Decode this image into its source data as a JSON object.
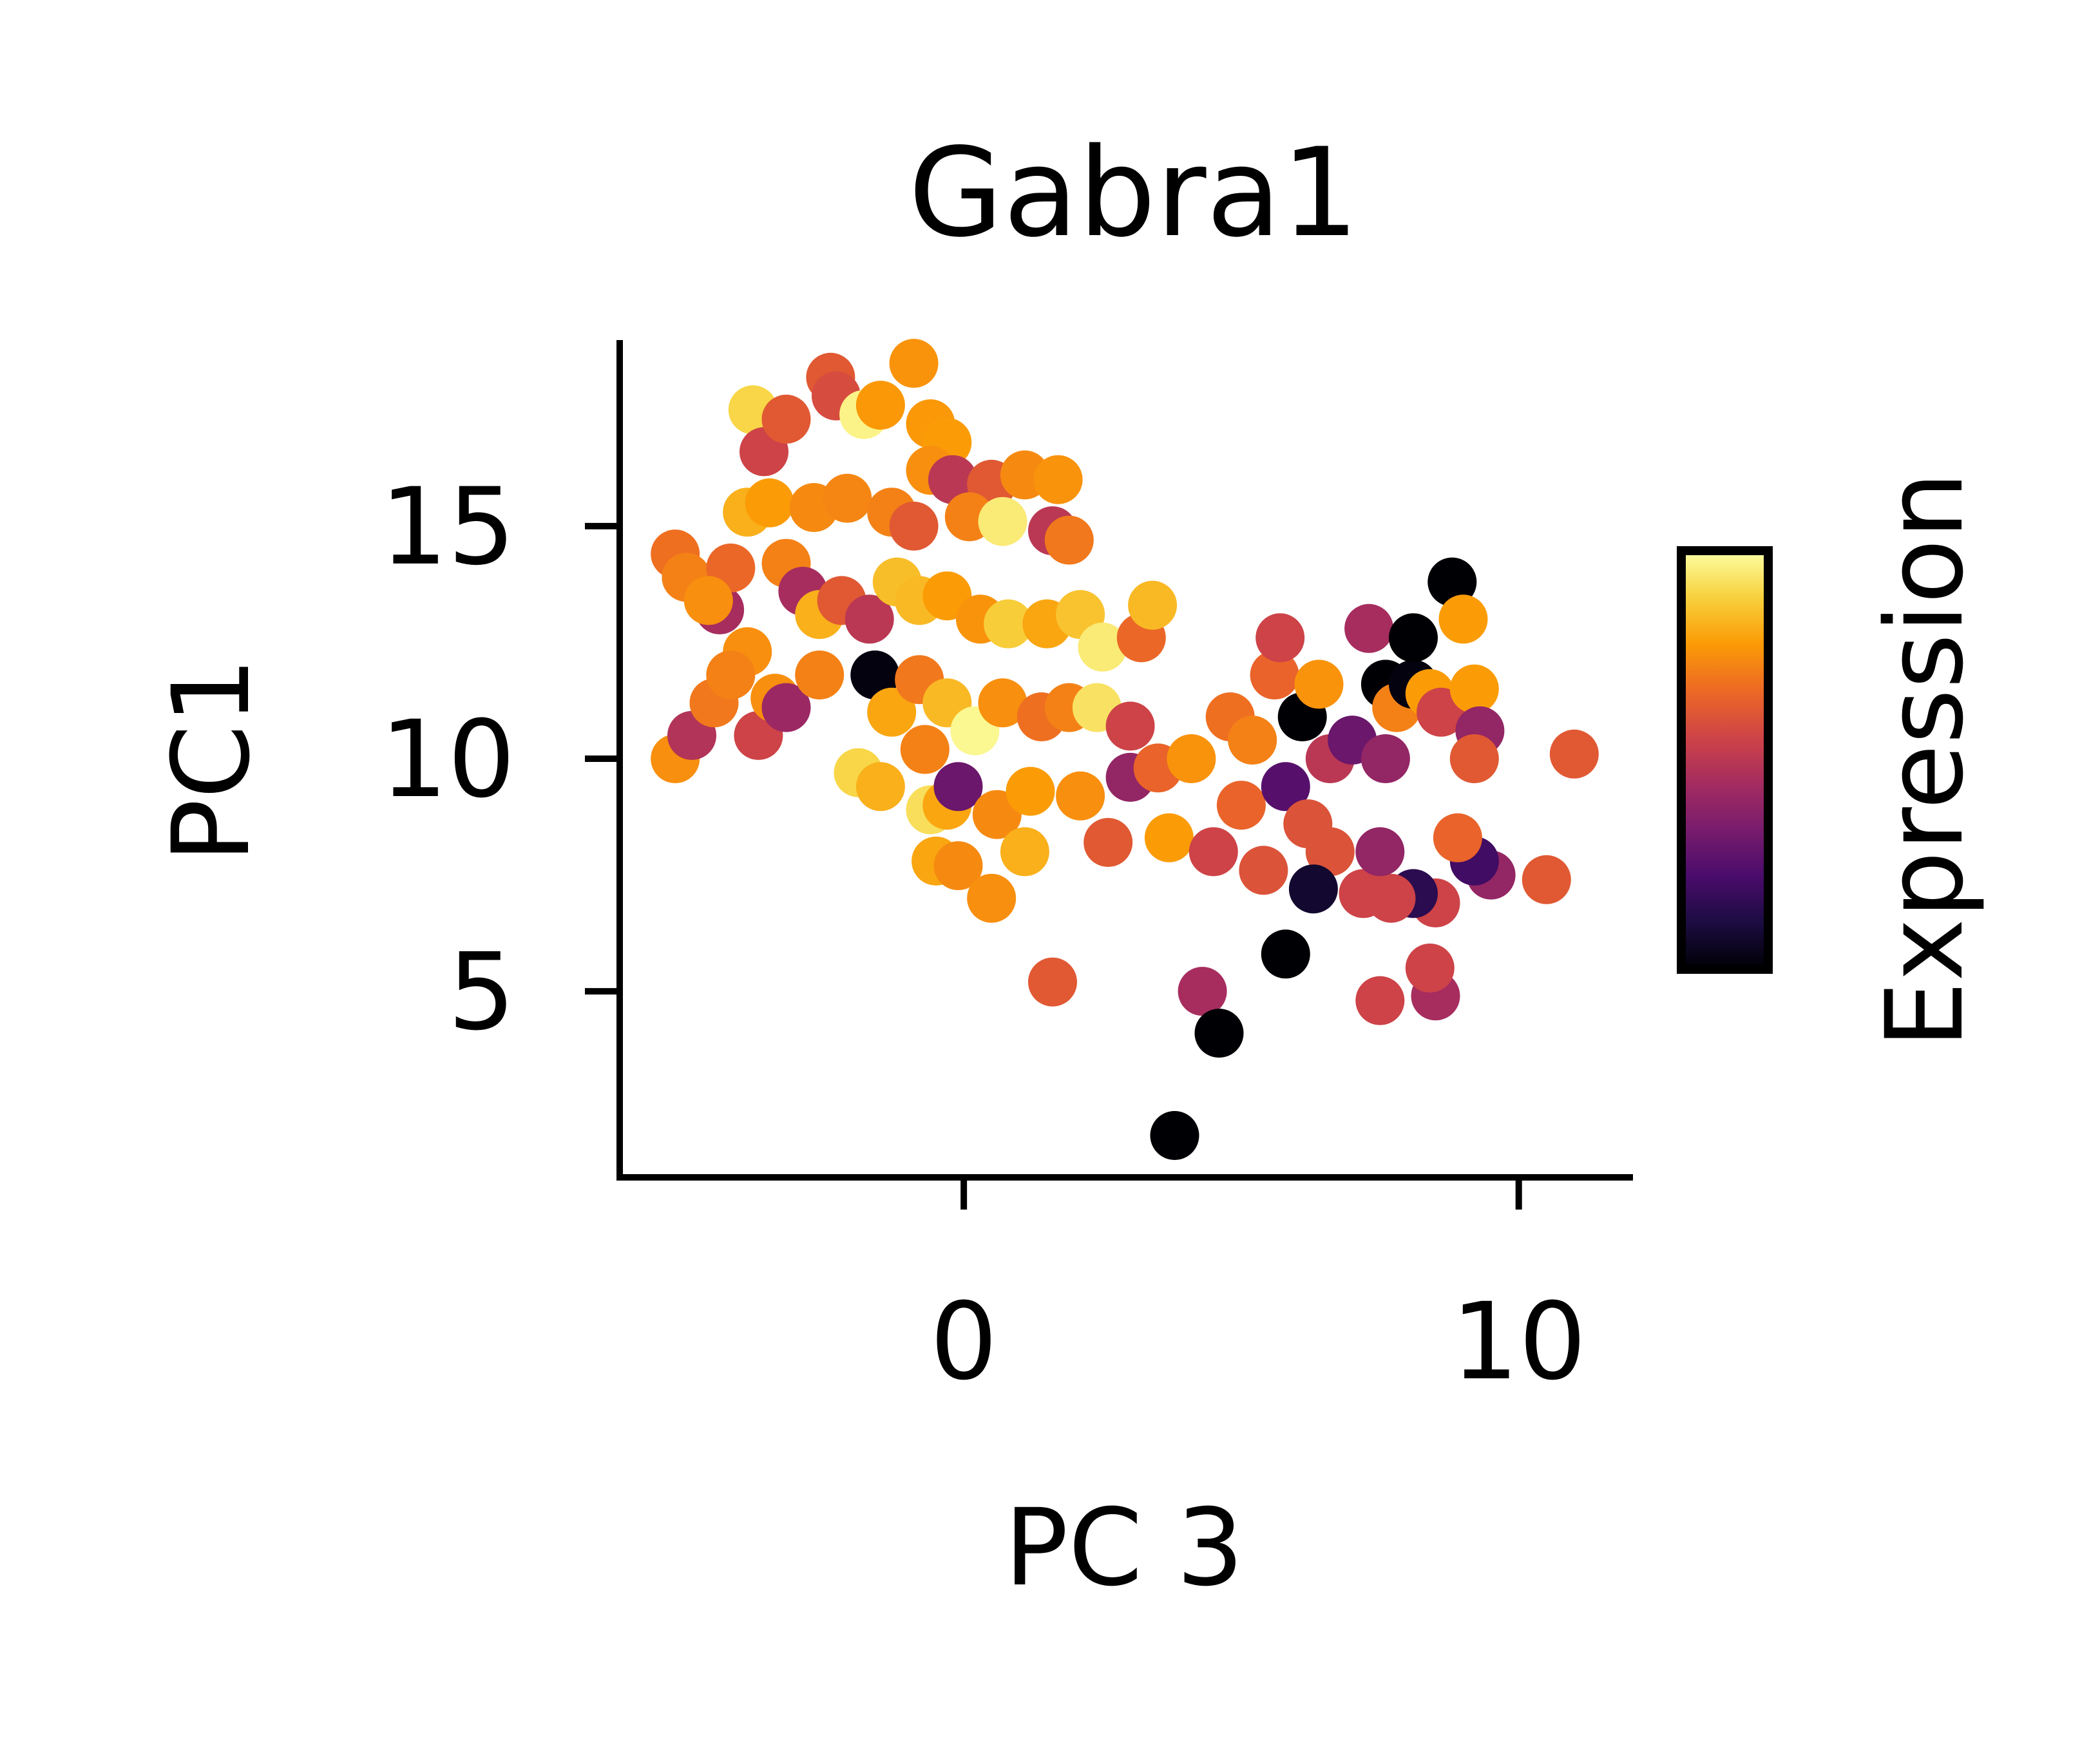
{
  "chart_data": {
    "type": "scatter",
    "title": "Gabra1",
    "xlabel": "PC 3",
    "ylabel": "PC1",
    "xlim": [
      -6.2,
      12.0
    ],
    "ylim": [
      1.0,
      19.0
    ],
    "xticks": [
      0,
      10
    ],
    "yticks": [
      5,
      10,
      15
    ],
    "grid": false,
    "legend": "none",
    "colorbar": {
      "label": "Expression",
      "colormap": "inferno",
      "range": [
        0,
        1
      ],
      "position": "right"
    },
    "colormap_stops": [
      "#000004",
      "#1b0c41",
      "#4a0c6b",
      "#781c6d",
      "#a52c60",
      "#cf4446",
      "#ed6925",
      "#fb9b06",
      "#f7d13d",
      "#fcffa4"
    ],
    "series": [
      {
        "name": "",
        "points": [
          {
            "x": -5.2,
            "y": 14.4,
            "v": 0.68
          },
          {
            "x": -5.0,
            "y": 13.9,
            "v": 0.72
          },
          {
            "x": -4.4,
            "y": 13.2,
            "v": 0.45
          },
          {
            "x": -4.2,
            "y": 14.1,
            "v": 0.66
          },
          {
            "x": -3.8,
            "y": 17.5,
            "v": 0.9
          },
          {
            "x": -3.6,
            "y": 16.6,
            "v": 0.55
          },
          {
            "x": -3.9,
            "y": 15.3,
            "v": 0.82
          },
          {
            "x": -3.5,
            "y": 15.5,
            "v": 0.78
          },
          {
            "x": -3.2,
            "y": 17.3,
            "v": 0.62
          },
          {
            "x": -2.4,
            "y": 18.2,
            "v": 0.62
          },
          {
            "x": -2.3,
            "y": 17.8,
            "v": 0.58
          },
          {
            "x": -1.8,
            "y": 17.4,
            "v": 0.97
          },
          {
            "x": -1.5,
            "y": 17.6,
            "v": 0.77
          },
          {
            "x": -0.9,
            "y": 18.5,
            "v": 0.76
          },
          {
            "x": -0.6,
            "y": 17.2,
            "v": 0.77
          },
          {
            "x": -0.3,
            "y": 16.8,
            "v": 0.78
          },
          {
            "x": -0.6,
            "y": 16.2,
            "v": 0.75
          },
          {
            "x": -0.2,
            "y": 16.0,
            "v": 0.5
          },
          {
            "x": 0.5,
            "y": 15.9,
            "v": 0.62
          },
          {
            "x": 1.1,
            "y": 16.1,
            "v": 0.74
          },
          {
            "x": 1.7,
            "y": 16.0,
            "v": 0.76
          },
          {
            "x": -2.7,
            "y": 15.4,
            "v": 0.74
          },
          {
            "x": -2.1,
            "y": 15.6,
            "v": 0.73
          },
          {
            "x": -1.3,
            "y": 15.3,
            "v": 0.72
          },
          {
            "x": -0.9,
            "y": 15.0,
            "v": 0.62
          },
          {
            "x": 0.1,
            "y": 15.2,
            "v": 0.72
          },
          {
            "x": 0.7,
            "y": 15.1,
            "v": 0.95
          },
          {
            "x": 1.6,
            "y": 14.9,
            "v": 0.5
          },
          {
            "x": 1.9,
            "y": 14.7,
            "v": 0.7
          },
          {
            "x": -4.6,
            "y": 13.4,
            "v": 0.75
          },
          {
            "x": -3.9,
            "y": 12.3,
            "v": 0.75
          },
          {
            "x": -3.2,
            "y": 14.2,
            "v": 0.72
          },
          {
            "x": -2.9,
            "y": 13.6,
            "v": 0.45
          },
          {
            "x": -2.6,
            "y": 13.1,
            "v": 0.82
          },
          {
            "x": -2.2,
            "y": 13.4,
            "v": 0.62
          },
          {
            "x": -1.7,
            "y": 13.0,
            "v": 0.5
          },
          {
            "x": -1.2,
            "y": 13.8,
            "v": 0.85
          },
          {
            "x": -0.8,
            "y": 13.4,
            "v": 0.84
          },
          {
            "x": -0.3,
            "y": 13.5,
            "v": 0.78
          },
          {
            "x": 0.3,
            "y": 13.0,
            "v": 0.76
          },
          {
            "x": 0.8,
            "y": 12.9,
            "v": 0.88
          },
          {
            "x": 1.5,
            "y": 12.9,
            "v": 0.8
          },
          {
            "x": 2.1,
            "y": 13.1,
            "v": 0.86
          },
          {
            "x": 2.5,
            "y": 12.4,
            "v": 0.95
          },
          {
            "x": 3.2,
            "y": 12.6,
            "v": 0.66
          },
          {
            "x": 3.4,
            "y": 13.3,
            "v": 0.84
          },
          {
            "x": -5.2,
            "y": 10.0,
            "v": 0.75
          },
          {
            "x": -4.9,
            "y": 10.5,
            "v": 0.48
          },
          {
            "x": -4.5,
            "y": 11.2,
            "v": 0.7
          },
          {
            "x": -4.2,
            "y": 11.8,
            "v": 0.72
          },
          {
            "x": -3.7,
            "y": 10.5,
            "v": 0.55
          },
          {
            "x": -3.4,
            "y": 11.3,
            "v": 0.75
          },
          {
            "x": -3.2,
            "y": 11.1,
            "v": 0.42
          },
          {
            "x": -2.6,
            "y": 11.8,
            "v": 0.72
          },
          {
            "x": -1.6,
            "y": 11.8,
            "v": 0.02
          },
          {
            "x": -1.3,
            "y": 11.0,
            "v": 0.8
          },
          {
            "x": -0.8,
            "y": 11.7,
            "v": 0.7
          },
          {
            "x": -0.3,
            "y": 11.2,
            "v": 0.84
          },
          {
            "x": 0.2,
            "y": 10.6,
            "v": 0.98
          },
          {
            "x": 0.7,
            "y": 11.2,
            "v": 0.75
          },
          {
            "x": 1.4,
            "y": 10.9,
            "v": 0.68
          },
          {
            "x": 1.9,
            "y": 11.1,
            "v": 0.72
          },
          {
            "x": 2.4,
            "y": 11.1,
            "v": 0.93
          },
          {
            "x": -1.9,
            "y": 9.7,
            "v": 0.9
          },
          {
            "x": -1.5,
            "y": 9.4,
            "v": 0.82
          },
          {
            "x": -0.7,
            "y": 10.2,
            "v": 0.72
          },
          {
            "x": -0.6,
            "y": 8.9,
            "v": 0.92
          },
          {
            "x": -0.3,
            "y": 9.0,
            "v": 0.8
          },
          {
            "x": -0.1,
            "y": 9.4,
            "v": 0.3
          },
          {
            "x": 0.6,
            "y": 8.8,
            "v": 0.74
          },
          {
            "x": 1.2,
            "y": 9.3,
            "v": 0.78
          },
          {
            "x": 2.1,
            "y": 9.2,
            "v": 0.75
          },
          {
            "x": 2.6,
            "y": 8.2,
            "v": 0.62
          },
          {
            "x": 1.1,
            "y": 8.0,
            "v": 0.82
          },
          {
            "x": -0.5,
            "y": 7.8,
            "v": 0.8
          },
          {
            "x": -0.1,
            "y": 7.7,
            "v": 0.74
          },
          {
            "x": 0.5,
            "y": 7.0,
            "v": 0.75
          },
          {
            "x": 1.6,
            "y": 5.2,
            "v": 0.62
          },
          {
            "x": 3.0,
            "y": 10.7,
            "v": 0.55
          },
          {
            "x": 3.0,
            "y": 9.6,
            "v": 0.4
          },
          {
            "x": 3.5,
            "y": 9.8,
            "v": 0.65
          },
          {
            "x": 3.7,
            "y": 8.3,
            "v": 0.78
          },
          {
            "x": 4.1,
            "y": 10.0,
            "v": 0.76
          },
          {
            "x": 4.5,
            "y": 8.0,
            "v": 0.55
          },
          {
            "x": 4.8,
            "y": 10.9,
            "v": 0.68
          },
          {
            "x": 5.0,
            "y": 9.0,
            "v": 0.65
          },
          {
            "x": 5.2,
            "y": 10.4,
            "v": 0.72
          },
          {
            "x": 5.4,
            "y": 7.6,
            "v": 0.6
          },
          {
            "x": 5.6,
            "y": 11.8,
            "v": 0.65
          },
          {
            "x": 5.8,
            "y": 9.4,
            "v": 0.25
          },
          {
            "x": 5.7,
            "y": 12.6,
            "v": 0.55
          },
          {
            "x": 6.1,
            "y": 10.9,
            "v": 0.0
          },
          {
            "x": 6.2,
            "y": 8.6,
            "v": 0.6
          },
          {
            "x": 6.4,
            "y": 11.6,
            "v": 0.76
          },
          {
            "x": 6.6,
            "y": 10.0,
            "v": 0.5
          },
          {
            "x": 7.0,
            "y": 10.4,
            "v": 0.3
          },
          {
            "x": 7.2,
            "y": 7.1,
            "v": 0.55
          },
          {
            "x": 7.3,
            "y": 12.8,
            "v": 0.45
          },
          {
            "x": 7.6,
            "y": 10.0,
            "v": 0.4
          },
          {
            "x": 7.6,
            "y": 11.6,
            "v": 0.0
          },
          {
            "x": 7.8,
            "y": 11.1,
            "v": 0.72
          },
          {
            "x": 8.1,
            "y": 11.6,
            "v": 0.02
          },
          {
            "x": 8.1,
            "y": 12.6,
            "v": 0.0
          },
          {
            "x": 8.4,
            "y": 11.4,
            "v": 0.78
          },
          {
            "x": 8.6,
            "y": 11.0,
            "v": 0.55
          },
          {
            "x": 8.8,
            "y": 13.8,
            "v": 0.0
          },
          {
            "x": 9.0,
            "y": 13.0,
            "v": 0.78
          },
          {
            "x": 9.2,
            "y": 11.5,
            "v": 0.78
          },
          {
            "x": 9.3,
            "y": 10.6,
            "v": 0.4
          },
          {
            "x": 9.2,
            "y": 10.0,
            "v": 0.62
          },
          {
            "x": 9.5,
            "y": 7.5,
            "v": 0.4
          },
          {
            "x": 9.2,
            "y": 7.8,
            "v": 0.2
          },
          {
            "x": 8.9,
            "y": 8.3,
            "v": 0.65
          },
          {
            "x": 8.5,
            "y": 6.9,
            "v": 0.55
          },
          {
            "x": 8.1,
            "y": 7.1,
            "v": 0.15
          },
          {
            "x": 7.7,
            "y": 7.0,
            "v": 0.55
          },
          {
            "x": 7.5,
            "y": 8.0,
            "v": 0.4
          },
          {
            "x": 6.6,
            "y": 8.0,
            "v": 0.6
          },
          {
            "x": 6.3,
            "y": 7.2,
            "v": 0.08
          },
          {
            "x": 5.8,
            "y": 5.8,
            "v": 0.0
          },
          {
            "x": 4.3,
            "y": 5.0,
            "v": 0.45
          },
          {
            "x": 4.6,
            "y": 4.1,
            "v": 0.0
          },
          {
            "x": 3.8,
            "y": 1.9,
            "v": 0.0
          },
          {
            "x": 7.5,
            "y": 4.8,
            "v": 0.55
          },
          {
            "x": 8.5,
            "y": 4.9,
            "v": 0.45
          },
          {
            "x": 8.4,
            "y": 5.5,
            "v": 0.55
          },
          {
            "x": 10.5,
            "y": 7.4,
            "v": 0.62
          },
          {
            "x": 11.0,
            "y": 10.1,
            "v": 0.62
          }
        ]
      }
    ]
  }
}
